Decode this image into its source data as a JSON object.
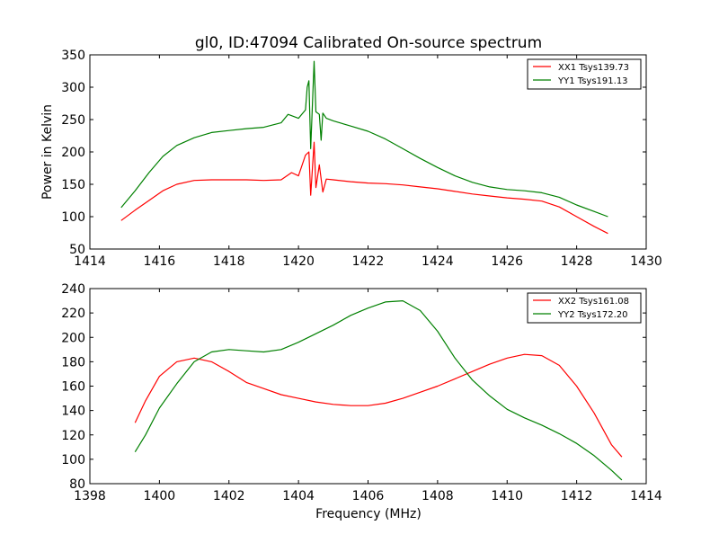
{
  "chart_data": [
    {
      "type": "line",
      "title": "gl0, ID:47094 Calibrated On-source spectrum",
      "xlabel": "",
      "ylabel": "Power in Kelvin",
      "xlim": [
        1414,
        1430
      ],
      "ylim": [
        50,
        350
      ],
      "xticks": [
        1414,
        1416,
        1418,
        1420,
        1422,
        1424,
        1426,
        1428,
        1430
      ],
      "yticks": [
        50,
        100,
        150,
        200,
        250,
        300,
        350
      ],
      "legend_position": "top-right",
      "series": [
        {
          "name": "XX1 Tsys139.73",
          "color": "#ff0000",
          "x": [
            1414.9,
            1415.3,
            1415.7,
            1416.1,
            1416.5,
            1417.0,
            1417.5,
            1418.0,
            1418.5,
            1419.0,
            1419.5,
            1419.8,
            1420.0,
            1420.2,
            1420.3,
            1420.35,
            1420.45,
            1420.5,
            1420.6,
            1420.7,
            1420.8,
            1421.0,
            1421.5,
            1422.0,
            1422.5,
            1423.0,
            1423.5,
            1424.0,
            1424.5,
            1425.0,
            1425.5,
            1426.0,
            1426.5,
            1427.0,
            1427.5,
            1428.0,
            1428.5,
            1428.9
          ],
          "y": [
            94,
            110,
            125,
            140,
            150,
            156,
            157,
            157,
            157,
            156,
            157,
            168,
            163,
            195,
            200,
            133,
            215,
            145,
            180,
            138,
            158,
            157,
            154,
            152,
            151,
            149,
            146,
            143,
            139,
            135,
            132,
            129,
            127,
            124,
            115,
            100,
            85,
            74
          ]
        },
        {
          "name": "YY1 Tsys191.13",
          "color": "#008000",
          "x": [
            1414.9,
            1415.3,
            1415.7,
            1416.1,
            1416.5,
            1417.0,
            1417.5,
            1418.0,
            1418.5,
            1419.0,
            1419.5,
            1419.7,
            1420.0,
            1420.2,
            1420.25,
            1420.3,
            1420.35,
            1420.45,
            1420.5,
            1420.6,
            1420.65,
            1420.7,
            1420.8,
            1421.0,
            1421.5,
            1422.0,
            1422.5,
            1423.0,
            1423.5,
            1424.0,
            1424.5,
            1425.0,
            1425.5,
            1426.0,
            1426.5,
            1427.0,
            1427.5,
            1428.0,
            1428.5,
            1428.9
          ],
          "y": [
            114,
            140,
            168,
            193,
            210,
            222,
            230,
            233,
            236,
            238,
            245,
            258,
            252,
            265,
            300,
            310,
            205,
            340,
            262,
            258,
            218,
            260,
            252,
            248,
            240,
            232,
            220,
            205,
            190,
            176,
            163,
            153,
            146,
            142,
            140,
            137,
            130,
            118,
            108,
            100
          ]
        }
      ]
    },
    {
      "type": "line",
      "title": "",
      "xlabel": "Frequency (MHz)",
      "ylabel": "",
      "xlim": [
        1398,
        1414
      ],
      "ylim": [
        80,
        240
      ],
      "xticks": [
        1398,
        1400,
        1402,
        1404,
        1406,
        1408,
        1410,
        1412,
        1414
      ],
      "yticks": [
        80,
        100,
        120,
        140,
        160,
        180,
        200,
        220,
        240
      ],
      "legend_position": "top-right",
      "series": [
        {
          "name": "XX2 Tsys161.08",
          "color": "#ff0000",
          "x": [
            1399.3,
            1399.6,
            1400.0,
            1400.5,
            1401.0,
            1401.5,
            1402.0,
            1402.5,
            1403.0,
            1403.5,
            1404.0,
            1404.5,
            1405.0,
            1405.5,
            1406.0,
            1406.5,
            1407.0,
            1407.5,
            1408.0,
            1408.5,
            1409.0,
            1409.5,
            1410.0,
            1410.5,
            1411.0,
            1411.5,
            1412.0,
            1412.5,
            1413.0,
            1413.3
          ],
          "y": [
            130,
            148,
            168,
            180,
            183,
            180,
            172,
            163,
            158,
            153,
            150,
            147,
            145,
            144,
            144,
            146,
            150,
            155,
            160,
            166,
            172,
            178,
            183,
            186,
            185,
            177,
            160,
            138,
            112,
            102
          ]
        },
        {
          "name": "YY2 Tsys172.20",
          "color": "#008000",
          "x": [
            1399.3,
            1399.6,
            1400.0,
            1400.5,
            1401.0,
            1401.5,
            1402.0,
            1402.5,
            1403.0,
            1403.5,
            1404.0,
            1404.5,
            1405.0,
            1405.5,
            1406.0,
            1406.5,
            1407.0,
            1407.5,
            1408.0,
            1408.5,
            1409.0,
            1409.5,
            1410.0,
            1410.5,
            1411.0,
            1411.5,
            1412.0,
            1412.5,
            1413.0,
            1413.3
          ],
          "y": [
            106,
            120,
            142,
            162,
            180,
            188,
            190,
            189,
            188,
            190,
            196,
            203,
            210,
            218,
            224,
            229,
            230,
            222,
            205,
            183,
            165,
            152,
            141,
            134,
            128,
            121,
            113,
            103,
            91,
            83
          ]
        }
      ]
    }
  ]
}
